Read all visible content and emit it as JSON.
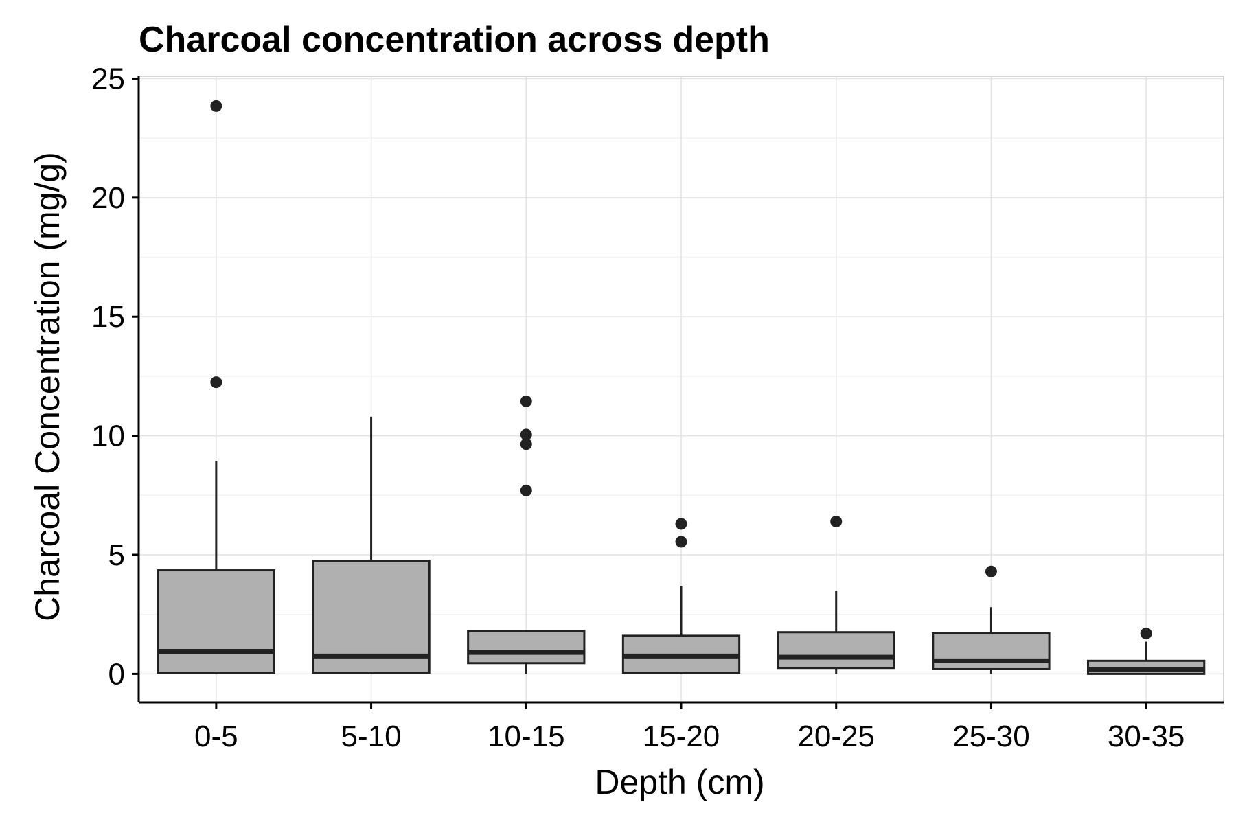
{
  "chart_data": {
    "type": "box",
    "title": "Charcoal concentration across depth",
    "xlabel": "Depth (cm)",
    "ylabel": "Charcoal Concentration (mg/g)",
    "categories": [
      "0-5",
      "5-10",
      "10-15",
      "15-20",
      "20-25",
      "25-30",
      "30-35"
    ],
    "ylim": [
      -1.2,
      25.1
    ],
    "yticks": [
      0,
      5,
      10,
      15,
      20,
      25
    ],
    "grid": true,
    "boxes": [
      {
        "category": "0-5",
        "min": 0.0,
        "q1": 0.05,
        "median": 0.95,
        "q3": 4.35,
        "max": 8.95,
        "outliers": [
          12.25,
          23.85
        ]
      },
      {
        "category": "5-10",
        "min": 0.0,
        "q1": 0.05,
        "median": 0.75,
        "q3": 4.75,
        "max": 10.8,
        "outliers": []
      },
      {
        "category": "10-15",
        "min": 0.0,
        "q1": 0.45,
        "median": 0.9,
        "q3": 1.8,
        "max": 1.8,
        "outliers": [
          7.7,
          9.65,
          10.05,
          11.45
        ]
      },
      {
        "category": "15-20",
        "min": 0.0,
        "q1": 0.05,
        "median": 0.75,
        "q3": 1.6,
        "max": 3.7,
        "outliers": [
          5.55,
          6.3
        ]
      },
      {
        "category": "20-25",
        "min": 0.0,
        "q1": 0.25,
        "median": 0.7,
        "q3": 1.75,
        "max": 3.5,
        "outliers": [
          6.4
        ]
      },
      {
        "category": "25-30",
        "min": 0.0,
        "q1": 0.2,
        "median": 0.55,
        "q3": 1.7,
        "max": 2.8,
        "outliers": [
          4.3
        ]
      },
      {
        "category": "30-35",
        "min": 0.0,
        "q1": 0.0,
        "median": 0.2,
        "q3": 0.55,
        "max": 1.35,
        "outliers": [
          1.7
        ]
      }
    ],
    "colors": {
      "box_fill": "#b0b0b0",
      "box_stroke": "#222222",
      "outlier": "#222222",
      "grid": "#e3e3e3",
      "grid_minor": "#f3f3f3",
      "axis": "#000000"
    }
  }
}
